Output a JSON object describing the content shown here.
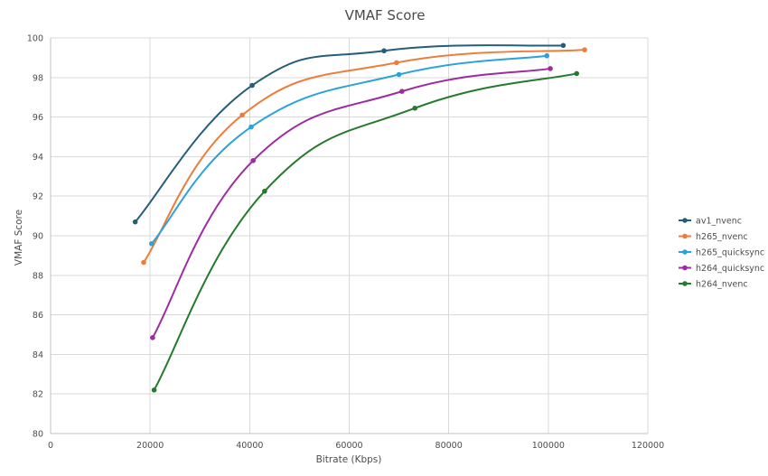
{
  "chart_data": {
    "type": "line",
    "title": "VMAF Score",
    "xlabel": "Bitrate (Kbps)",
    "ylabel": "VMAF Score",
    "xlim": [
      0,
      120000
    ],
    "ylim": [
      80,
      100
    ],
    "x_ticks": [
      0,
      20000,
      40000,
      60000,
      80000,
      100000,
      120000
    ],
    "y_ticks": [
      80,
      82,
      84,
      86,
      88,
      90,
      92,
      94,
      96,
      98,
      100
    ],
    "grid": true,
    "legend_position": "right",
    "series": [
      {
        "name": "av1_nvenc",
        "color": "#255e79",
        "points": [
          [
            17000,
            90.7
          ],
          [
            40500,
            97.6
          ],
          [
            67000,
            99.35
          ],
          [
            103000,
            99.62
          ]
        ]
      },
      {
        "name": "h265_nvenc",
        "color": "#ee7d3b",
        "points": [
          [
            18700,
            88.65
          ],
          [
            38500,
            96.1
          ],
          [
            69500,
            98.75
          ],
          [
            107300,
            99.4
          ]
        ]
      },
      {
        "name": "h265_quicksync",
        "color": "#2ba3d8",
        "points": [
          [
            20300,
            89.6
          ],
          [
            40300,
            95.5
          ],
          [
            70000,
            98.15
          ],
          [
            99700,
            99.1
          ]
        ]
      },
      {
        "name": "h264_quicksync",
        "color": "#9c2ca0",
        "points": [
          [
            20500,
            84.85
          ],
          [
            40700,
            93.8
          ],
          [
            70600,
            97.3
          ],
          [
            100400,
            98.45
          ]
        ]
      },
      {
        "name": "h264_nvenc",
        "color": "#267a2e",
        "points": [
          [
            20800,
            82.2
          ],
          [
            43000,
            92.25
          ],
          [
            73200,
            96.45
          ],
          [
            105700,
            98.2
          ]
        ]
      }
    ]
  }
}
